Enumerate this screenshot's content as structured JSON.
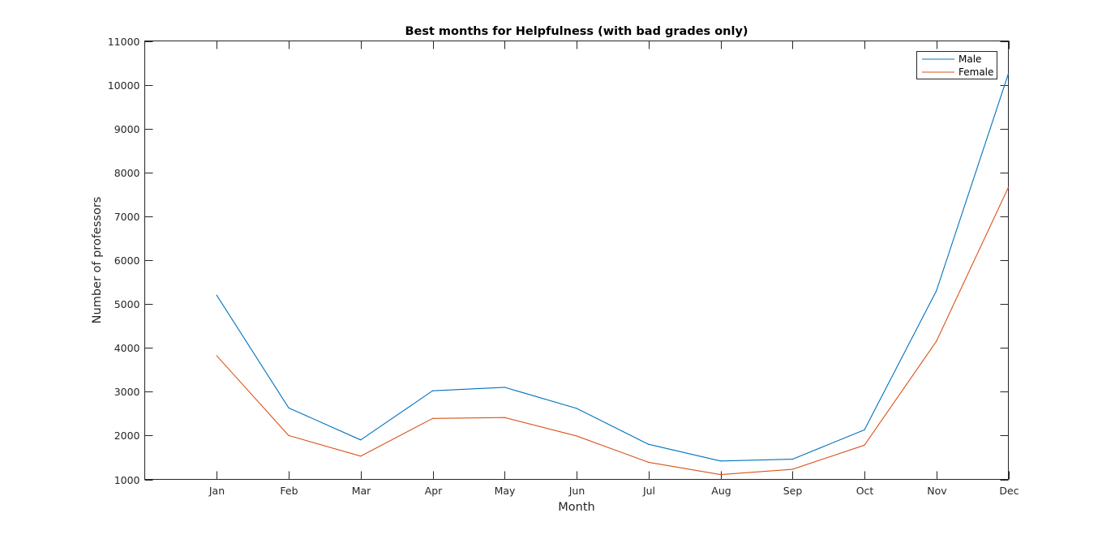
{
  "chart_data": {
    "type": "line",
    "title": "Best months for Helpfulness (with bad grades only)",
    "xlabel": "Month",
    "ylabel": "Number of professors",
    "categories": [
      "Jan",
      "Feb",
      "Mar",
      "Apr",
      "May",
      "Jun",
      "Jul",
      "Aug",
      "Sep",
      "Oct",
      "Nov",
      "Dec"
    ],
    "x_range": [
      0,
      12
    ],
    "ylim": [
      1000,
      11000
    ],
    "yticks": [
      1000,
      2000,
      3000,
      4000,
      5000,
      6000,
      7000,
      8000,
      9000,
      10000,
      11000
    ],
    "grid": false,
    "legend_position": "top-right",
    "series": [
      {
        "name": "Male",
        "color": "#0072bd",
        "values": [
          5200,
          2630,
          1900,
          3020,
          3100,
          2620,
          1800,
          1420,
          1460,
          2130,
          5300,
          10250
        ]
      },
      {
        "name": "Female",
        "color": "#d95319",
        "values": [
          3820,
          2000,
          1530,
          2390,
          2410,
          1990,
          1390,
          1110,
          1230,
          1780,
          4150,
          7660
        ]
      }
    ]
  }
}
